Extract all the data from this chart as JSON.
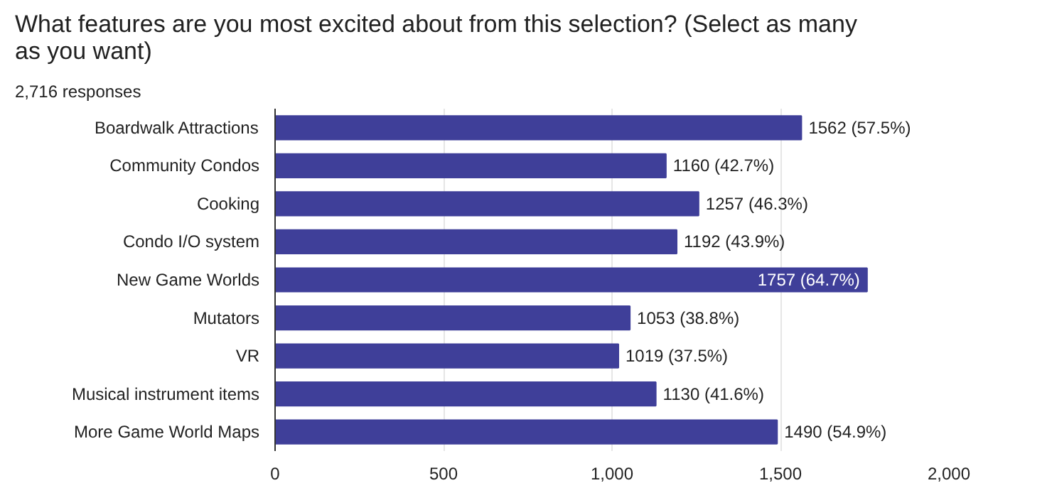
{
  "chart_data": {
    "type": "bar",
    "orientation": "horizontal",
    "title": "What features are you most excited about from this selection? (Select as many as you want)",
    "subtitle": "2,716 responses",
    "categories": [
      "Boardwalk Attractions",
      "Community Condos",
      "Cooking",
      "Condo I/O system",
      "New Game Worlds",
      "Mutators",
      "VR",
      "Musical instrument items",
      "More Game World Maps"
    ],
    "values": [
      1562,
      1160,
      1257,
      1192,
      1757,
      1053,
      1019,
      1130,
      1490
    ],
    "value_labels": [
      "1562 (57.5%)",
      "1160 (42.7%)",
      "1257 (46.3%)",
      "1192 (43.9%)",
      "1757 (64.7%)",
      "1053 (38.8%)",
      "1019 (37.5%)",
      "1130 (41.6%)",
      "1490 (54.9%)"
    ],
    "color": "#3f3f99",
    "xlim": [
      0,
      2000
    ],
    "xticks": [
      0,
      500,
      {
        "value": 1000,
        "label": "1,000"
      },
      {
        "value": 1500,
        "label": "1,500"
      },
      {
        "value": 2000,
        "label": "2,000"
      }
    ],
    "grid": "x"
  }
}
